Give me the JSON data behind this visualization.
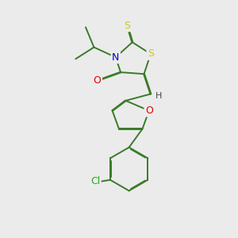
{
  "background_color": "#ebebeb",
  "bond_color": "#3a7a28",
  "atom_colors": {
    "N": "#0000cc",
    "O": "#dd0000",
    "S": "#cccc00",
    "Cl": "#22aa22",
    "H": "#444444"
  },
  "figsize": [
    3.0,
    3.0
  ],
  "dpi": 100
}
